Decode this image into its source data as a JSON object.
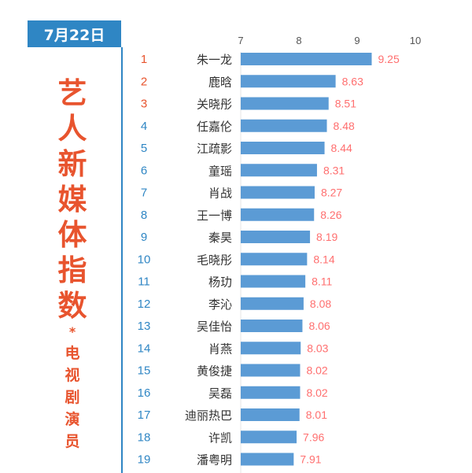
{
  "header": {
    "date": "7月22日"
  },
  "side_title": {
    "main": "艺人新媒体指数",
    "star": "*",
    "sub": "电视剧演员"
  },
  "colors": {
    "bar": "#5b9bd5",
    "value": "#ff6f6f",
    "rank_top": "#e8542e",
    "rank_rest": "#2f86c4",
    "accent": "#2f86c4"
  },
  "chart_data": {
    "type": "bar",
    "orientation": "horizontal",
    "xlim": [
      7,
      10
    ],
    "x_ticks": [
      7,
      8,
      9,
      10
    ],
    "grid": false,
    "rows": [
      {
        "rank": "1",
        "name": "朱一龙",
        "value": 9.25
      },
      {
        "rank": "2",
        "name": "鹿晗",
        "value": 8.63
      },
      {
        "rank": "3",
        "name": "关晓彤",
        "value": 8.51
      },
      {
        "rank": "4",
        "name": "任嘉伦",
        "value": 8.48
      },
      {
        "rank": "5",
        "name": "江疏影",
        "value": 8.44
      },
      {
        "rank": "6",
        "name": "童瑶",
        "value": 8.31
      },
      {
        "rank": "7",
        "name": "肖战",
        "value": 8.27
      },
      {
        "rank": "8",
        "name": "王一博",
        "value": 8.26
      },
      {
        "rank": "9",
        "name": "秦昊",
        "value": 8.19
      },
      {
        "rank": "10",
        "name": "毛晓彤",
        "value": 8.14
      },
      {
        "rank": "11",
        "name": "杨玏",
        "value": 8.11
      },
      {
        "rank": "12",
        "name": "李沁",
        "value": 8.08
      },
      {
        "rank": "13",
        "name": "吴佳怡",
        "value": 8.06
      },
      {
        "rank": "14",
        "name": "肖燕",
        "value": 8.03
      },
      {
        "rank": "15",
        "name": "黄俊捷",
        "value": 8.02
      },
      {
        "rank": "16",
        "name": "吴磊",
        "value": 8.02
      },
      {
        "rank": "17",
        "name": "迪丽热巴",
        "value": 8.01
      },
      {
        "rank": "18",
        "name": "许凯",
        "value": 7.96
      },
      {
        "rank": "19",
        "name": "潘粤明",
        "value": 7.91
      }
    ]
  }
}
